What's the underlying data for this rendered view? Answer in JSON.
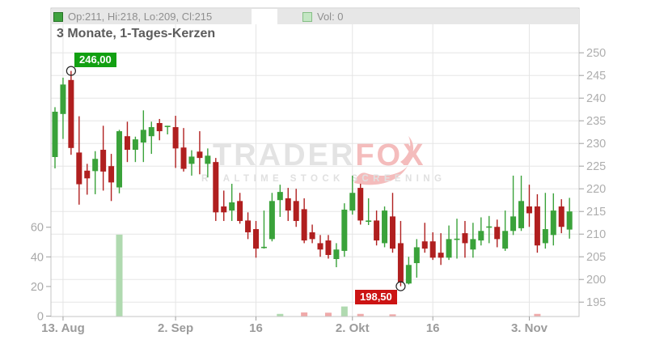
{
  "title": "3 Monate, 1-Tages-Kerzen",
  "legend": {
    "ohlc": "Op:211, Hi:218, Lo:209, Cl:215",
    "volume": "Vol: 0"
  },
  "watermark": {
    "part1": "TRADER",
    "part2": "FOX",
    "subtitle": "REALTIME STOCK SCREENING"
  },
  "markers": {
    "high": {
      "label": "246,00",
      "value": 246.0,
      "candle_index": 2
    },
    "low": {
      "label": "198,50",
      "value": 198.5,
      "candle_index": 43
    }
  },
  "colors": {
    "candle_green": "#3aa23a",
    "candle_red": "#b01f1f",
    "volume_green": "#b0dab0",
    "volume_red": "#f0aaaa",
    "high_label_bg": "#12a012",
    "low_label_bg": "#cc1414",
    "grid": "#e5e5e5",
    "border": "#c6c6c6",
    "tick": "#9f9f9f",
    "price_text": "#aeaeae",
    "vol_text": "#a8a8a8",
    "date_text": "#9b9b9b",
    "watermark_gray": "#e3e3e3",
    "watermark_pink": "#f4bcbc",
    "marker_stroke": "#222222"
  },
  "chart_data": {
    "type": "candlestick",
    "title": "3 Monate, 1-Tages-Kerzen",
    "period": "3 Monate",
    "interval": "1-Tages-Kerzen",
    "price_axis_ticks": [
      195,
      200,
      205,
      210,
      215,
      220,
      225,
      230,
      235,
      240,
      245,
      250
    ],
    "price_ylim": [
      192,
      260
    ],
    "volume_axis_ticks": [
      0,
      20,
      40,
      60
    ],
    "volume_ylim": [
      0,
      66
    ],
    "date_ticks": [
      {
        "label": "13. Aug",
        "candle_index": 1
      },
      {
        "label": "2. Sep",
        "candle_index": 15
      },
      {
        "label": "16",
        "candle_index": 25
      },
      {
        "label": "2. Okt",
        "candle_index": 37
      },
      {
        "label": "16",
        "candle_index": 47
      },
      {
        "label": "3. Nov",
        "candle_index": 59
      }
    ],
    "columns": [
      "open",
      "high",
      "low",
      "close"
    ],
    "candles": [
      [
        227.0,
        238.0,
        224.5,
        237.0
      ],
      [
        236.5,
        244.5,
        231.0,
        243.0
      ],
      [
        244.0,
        246.0,
        227.5,
        229.0
      ],
      [
        228.0,
        236.0,
        216.5,
        221.0
      ],
      [
        224.0,
        225.5,
        218.7,
        222.3
      ],
      [
        223.9,
        228.3,
        218.8,
        226.6
      ],
      [
        228.6,
        233.9,
        219.6,
        223.8
      ],
      [
        225.0,
        227.7,
        217.3,
        221.4
      ],
      [
        220.3,
        233.0,
        219.0,
        232.7
      ],
      [
        231.6,
        234.8,
        225.9,
        228.6
      ],
      [
        228.6,
        231.5,
        225.9,
        230.9
      ],
      [
        230.2,
        237.3,
        225.9,
        233.0
      ],
      [
        231.6,
        234.8,
        227.7,
        233.6
      ],
      [
        234.5,
        235.4,
        230.7,
        232.7
      ],
      [
        233.9,
        233.9,
        232.0,
        233.9
      ],
      [
        233.6,
        236.1,
        224.6,
        228.9
      ],
      [
        229.1,
        233.4,
        223.8,
        224.4
      ],
      [
        225.5,
        228.5,
        222.9,
        227.1
      ],
      [
        228.2,
        232.7,
        223.2,
        226.8
      ],
      [
        225.5,
        228.9,
        222.5,
        227.3
      ],
      [
        225.9,
        226.8,
        212.9,
        214.8
      ],
      [
        216.1,
        219.6,
        212.9,
        214.8
      ],
      [
        215.2,
        221.1,
        212.9,
        217.0
      ],
      [
        217.3,
        219.1,
        212.3,
        212.9
      ],
      [
        213.0,
        214.8,
        208.9,
        210.4
      ],
      [
        211.1,
        212.9,
        204.8,
        206.8
      ],
      [
        207.1,
        215.2,
        206.8,
        207.2
      ],
      [
        208.9,
        219.1,
        208.4,
        217.3
      ],
      [
        217.5,
        220.9,
        213.8,
        219.3
      ],
      [
        217.9,
        220.2,
        212.9,
        215.2
      ],
      [
        217.3,
        220.0,
        211.6,
        212.9
      ],
      [
        215.5,
        217.9,
        208.0,
        208.6
      ],
      [
        210.4,
        212.1,
        208.0,
        208.9
      ],
      [
        208.0,
        209.8,
        205.0,
        206.6
      ],
      [
        208.6,
        209.8,
        204.6,
        205.4
      ],
      [
        204.5,
        208.0,
        202.7,
        206.6
      ],
      [
        206.3,
        216.8,
        205.0,
        215.4
      ],
      [
        215.2,
        222.9,
        214.3,
        219.1
      ],
      [
        220.2,
        221.1,
        212.1,
        213.0
      ],
      [
        212.9,
        217.9,
        212.0,
        213.0
      ],
      [
        213.0,
        215.2,
        207.5,
        208.6
      ],
      [
        208.0,
        216.1,
        207.1,
        215.2
      ],
      [
        213.9,
        219.1,
        205.9,
        206.8
      ],
      [
        208.0,
        212.9,
        198.5,
        199.4
      ],
      [
        199.1,
        205.0,
        198.9,
        203.2
      ],
      [
        203.6,
        208.9,
        200.4,
        207.1
      ],
      [
        208.4,
        212.5,
        205.9,
        206.8
      ],
      [
        208.4,
        210.4,
        204.3,
        204.8
      ],
      [
        205.9,
        210.2,
        203.2,
        204.8
      ],
      [
        204.8,
        211.9,
        204.3,
        208.9
      ],
      [
        208.9,
        213.4,
        204.6,
        209.0
      ],
      [
        210.2,
        212.9,
        204.8,
        208.0
      ],
      [
        206.6,
        212.5,
        204.8,
        208.9
      ],
      [
        208.6,
        213.7,
        207.5,
        210.7
      ],
      [
        211.6,
        214.0,
        208.0,
        211.7
      ],
      [
        211.6,
        213.2,
        207.1,
        208.9
      ],
      [
        206.8,
        215.2,
        206.3,
        210.7
      ],
      [
        210.7,
        222.9,
        209.8,
        213.9
      ],
      [
        211.3,
        222.9,
        210.7,
        217.3
      ],
      [
        216.1,
        220.9,
        211.6,
        214.6
      ],
      [
        216.1,
        218.8,
        205.9,
        207.5
      ],
      [
        208.0,
        219.1,
        206.8,
        211.1
      ],
      [
        209.8,
        219.0,
        207.5,
        215.2
      ],
      [
        216.1,
        217.7,
        210.2,
        211.6
      ],
      [
        211.0,
        218.0,
        209.0,
        215.0
      ]
    ],
    "volumes": [
      0,
      0,
      0,
      0,
      0,
      0,
      0,
      0,
      55,
      0,
      0,
      0,
      0,
      0,
      0,
      0,
      0,
      0,
      0,
      0,
      0,
      0,
      0,
      0,
      0,
      0,
      0,
      0,
      1.5,
      0,
      0,
      2.5,
      0,
      0,
      2.3,
      0,
      6.5,
      0,
      1.5,
      0,
      0,
      0,
      1.2,
      0,
      0,
      0,
      0,
      0,
      0,
      0,
      0,
      0,
      0,
      0,
      0,
      0,
      0,
      0,
      0,
      0,
      1.5,
      0,
      0,
      0,
      0
    ],
    "annotations": [
      {
        "text": "246,00",
        "type": "high"
      },
      {
        "text": "198,50",
        "type": "low"
      }
    ],
    "legend_position": "top",
    "grid": true
  }
}
